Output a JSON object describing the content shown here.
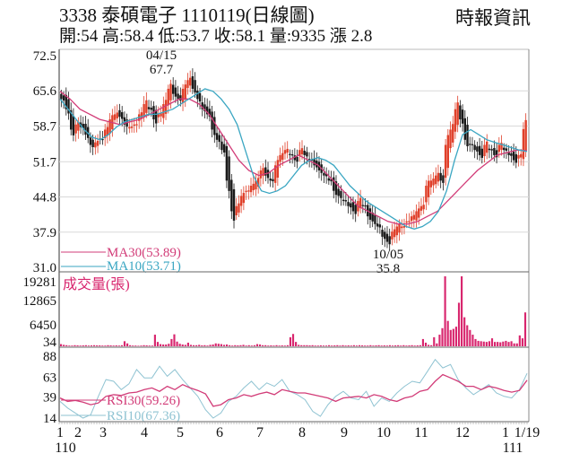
{
  "header": {
    "title": "3338  泰碩電子 1110119(日線圖)",
    "subtitle": "開:54 高:58.4 低:53.7 收:58.1 量:9335 漲 2.8",
    "source": "時報資訊"
  },
  "colors": {
    "up_candle": "#e0402a",
    "down_candle": "#1a1a1a",
    "ma30": "#d23c78",
    "ma10": "#3aa6c2",
    "volume": "#d8266e",
    "rsi30": "#d23c78",
    "rsi10": "#8fc3d2",
    "grid": "#d9d9d9",
    "axis": "#555555"
  },
  "chart_data": [
    {
      "type": "candlestick",
      "title": "3338 泰碩電子 1110119(日線圖)",
      "panel": "price",
      "ylim": [
        31.0,
        72.5
      ],
      "yticks": [
        72.5,
        65.6,
        58.7,
        51.7,
        44.8,
        37.9,
        31.0
      ],
      "grid": true,
      "ohlc_latest": {
        "open": 54,
        "high": 58.4,
        "low": 53.7,
        "close": 58.1,
        "volume": 9335,
        "change": 2.8
      },
      "annotations": [
        {
          "label_date": "04/15",
          "label_value": "67.7",
          "type": "high"
        },
        {
          "label_date": "10/05",
          "label_value": "35.8",
          "type": "low"
        }
      ],
      "legend": [
        {
          "name": "MA30",
          "value": "MA30(53.89)"
        },
        {
          "name": "MA10",
          "value": "MA10(53.71)"
        }
      ],
      "x_months": [
        "1",
        "2",
        "3",
        "4",
        "5",
        "6",
        "7",
        "8",
        "9",
        "10",
        "11",
        "12",
        "1",
        "1/19"
      ],
      "x_years": [
        "110",
        "111"
      ],
      "close_approx": [
        64,
        62,
        58,
        59,
        58.5,
        57,
        55,
        55.5,
        56,
        58,
        60,
        61,
        60.5,
        59,
        58.5,
        59,
        61,
        63,
        62,
        60,
        61,
        63,
        66,
        65,
        64,
        66,
        67.7,
        66,
        64,
        62,
        61,
        58,
        56,
        54,
        48,
        42,
        43,
        45,
        46,
        47,
        48,
        50,
        49,
        48,
        51,
        53,
        54,
        53,
        52,
        54,
        53,
        52,
        51,
        50,
        49,
        48,
        46,
        45,
        44,
        43,
        42,
        44,
        43,
        41,
        40,
        39,
        37,
        36,
        38,
        39,
        39,
        40,
        41,
        42,
        43,
        47,
        48,
        49,
        48,
        55,
        58,
        62,
        60,
        56,
        55,
        54,
        53,
        55,
        54,
        53,
        55,
        54,
        53,
        52,
        53,
        58.1
      ],
      "series": [
        {
          "name": "MA10",
          "values_approx": [
            64,
            62,
            60,
            58,
            56.5,
            56,
            57,
            58.5,
            59.5,
            60,
            60.5,
            61,
            61,
            61.5,
            62,
            63,
            64,
            65,
            66,
            65.5,
            64,
            62,
            59,
            54,
            49,
            46,
            45.5,
            46,
            47,
            49,
            51,
            52,
            52.5,
            52,
            51,
            49,
            47,
            45.5,
            44,
            43,
            42,
            41,
            40,
            39,
            38.5,
            39,
            40,
            42,
            46,
            52,
            57,
            58,
            57,
            56,
            55.5,
            55,
            54.5,
            54,
            53.71
          ]
        },
        {
          "name": "MA30",
          "values_approx": [
            65.5,
            64,
            62,
            61,
            60,
            59.5,
            59,
            59.5,
            60,
            61,
            62,
            63,
            64,
            64,
            63,
            61,
            58,
            55,
            52,
            50,
            49,
            49.5,
            51,
            52,
            53,
            52,
            51,
            49,
            47,
            45,
            43,
            42,
            41,
            40,
            39.5,
            39.5,
            40,
            41,
            42,
            44,
            46,
            48,
            50,
            51.5,
            53,
            53.5,
            54,
            53.89
          ]
        }
      ]
    },
    {
      "type": "bar",
      "panel": "volume",
      "title": "成交量(張)",
      "ylim": [
        0,
        19281
      ],
      "yticks": [
        19281,
        12865,
        6450,
        34
      ],
      "values_approx": [
        600,
        400,
        300,
        200,
        200,
        300,
        250,
        200,
        250,
        300,
        200,
        250,
        300,
        250,
        250,
        200,
        200,
        300,
        250,
        200,
        250,
        200,
        300,
        1400,
        800,
        300,
        200,
        200,
        150,
        200,
        300,
        250,
        200,
        200,
        3200,
        1200,
        600,
        500,
        500,
        700,
        2000,
        3300,
        1300,
        700,
        500,
        400,
        1000,
        400,
        300,
        300,
        400,
        250,
        300,
        200,
        400,
        500,
        800,
        700,
        600,
        400,
        500,
        300,
        200,
        300,
        250,
        300,
        400,
        200,
        300,
        200,
        300,
        600,
        500,
        300,
        300,
        200,
        250,
        200,
        300,
        200,
        250,
        200,
        300,
        2500,
        3400,
        1200,
        400,
        300,
        300,
        300,
        250,
        300,
        200,
        200,
        250,
        200,
        200,
        300,
        200,
        250,
        300,
        200,
        300,
        200,
        250,
        200,
        300,
        200,
        300,
        250,
        200,
        200,
        300,
        200,
        250,
        300,
        200,
        250,
        200,
        300,
        200,
        250,
        300,
        200,
        300,
        200,
        250,
        300,
        200,
        250,
        300,
        2000,
        1000,
        400,
        300,
        2500,
        800,
        3200,
        5000,
        19281,
        7000,
        4500,
        4800,
        5400,
        12000,
        19281,
        8000,
        5800,
        4500,
        3200,
        2000,
        1500,
        1400,
        1300,
        1200,
        1400,
        2200,
        1200,
        1200,
        1100,
        1300,
        1500,
        1200,
        1400,
        800,
        800,
        3000,
        2200,
        9335
      ],
      "grid": false
    },
    {
      "type": "line",
      "panel": "rsi",
      "ylim": [
        14,
        88
      ],
      "yticks": [
        88,
        63,
        39,
        14
      ],
      "legend": [
        {
          "name": "RSI30",
          "value": "RSI30(59.26)"
        },
        {
          "name": "RSI10",
          "value": "RSI10(67.36)"
        }
      ],
      "series": [
        {
          "name": "RSI30",
          "values_approx": [
            38,
            34,
            35,
            33,
            30,
            32,
            40,
            42,
            41,
            44,
            45,
            48,
            50,
            46,
            52,
            48,
            54,
            50,
            47,
            43,
            28,
            30,
            36,
            38,
            42,
            40,
            43,
            45,
            42,
            48,
            46,
            44,
            44,
            42,
            40,
            38,
            34,
            38,
            39,
            40,
            38,
            42,
            40,
            36,
            34,
            38,
            40,
            46,
            48,
            58,
            66,
            62,
            58,
            52,
            52,
            48,
            52,
            50,
            47,
            45,
            47,
            59.26
          ]
        },
        {
          "name": "RSI10",
          "values_approx": [
            34,
            26,
            20,
            14,
            18,
            40,
            60,
            58,
            48,
            55,
            72,
            62,
            62,
            76,
            64,
            72,
            60,
            50,
            40,
            24,
            14,
            20,
            34,
            40,
            50,
            58,
            48,
            56,
            52,
            60,
            46,
            42,
            36,
            22,
            16,
            30,
            40,
            46,
            38,
            36,
            46,
            28,
            38,
            34,
            44,
            52,
            58,
            56,
            70,
            84,
            74,
            78,
            60,
            50,
            42,
            48,
            54,
            44,
            40,
            38,
            48,
            67.36
          ]
        }
      ]
    }
  ]
}
